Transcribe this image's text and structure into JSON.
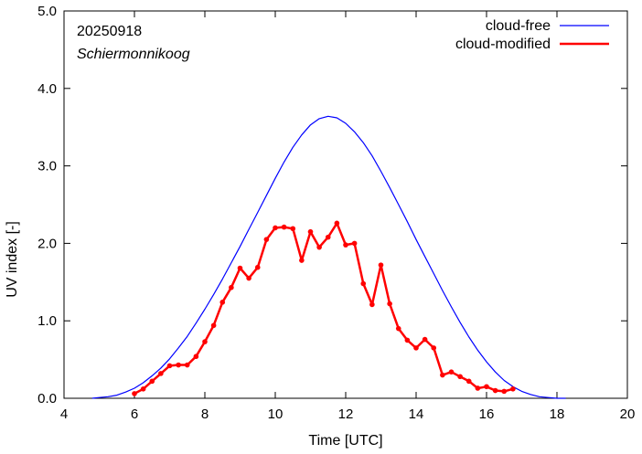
{
  "chart_data": {
    "type": "line",
    "xlabel": "Time  [UTC]",
    "ylabel": "UV index  [-]",
    "xlim": [
      4,
      20
    ],
    "ylim": [
      0,
      5
    ],
    "x_ticks": [
      4,
      6,
      8,
      10,
      12,
      14,
      16,
      18,
      20
    ],
    "y_ticks": [
      0,
      1,
      2,
      3,
      4,
      5
    ],
    "x_tick_labels": [
      "4",
      "6",
      "8",
      "10",
      "12",
      "14",
      "16",
      "18",
      "20"
    ],
    "y_tick_labels": [
      "0.0",
      "1.0",
      "2.0",
      "3.0",
      "4.0",
      "5.0"
    ],
    "grid": false,
    "legend_position": "top-right",
    "annotations": [
      "20250918",
      "Schiermonnikoog"
    ],
    "series": [
      {
        "name": "cloud-free",
        "color": "#0000ff",
        "markers": false,
        "x": [
          4.8,
          5.0,
          5.25,
          5.5,
          5.75,
          6.0,
          6.25,
          6.5,
          6.75,
          7.0,
          7.25,
          7.5,
          7.75,
          8.0,
          8.25,
          8.5,
          8.75,
          9.0,
          9.25,
          9.5,
          9.75,
          10.0,
          10.25,
          10.5,
          10.75,
          11.0,
          11.25,
          11.5,
          11.75,
          12.0,
          12.25,
          12.5,
          12.75,
          13.0,
          13.25,
          13.5,
          13.75,
          14.0,
          14.25,
          14.5,
          14.75,
          15.0,
          15.25,
          15.5,
          15.75,
          16.0,
          16.25,
          16.5,
          16.75,
          17.0,
          17.25,
          17.5,
          17.75,
          18.0,
          18.25
        ],
        "values": [
          0.0,
          0.01,
          0.02,
          0.04,
          0.08,
          0.13,
          0.2,
          0.29,
          0.39,
          0.51,
          0.65,
          0.8,
          0.97,
          1.15,
          1.34,
          1.54,
          1.75,
          1.96,
          2.18,
          2.4,
          2.62,
          2.84,
          3.05,
          3.24,
          3.4,
          3.53,
          3.61,
          3.64,
          3.62,
          3.55,
          3.44,
          3.3,
          3.13,
          2.93,
          2.72,
          2.5,
          2.28,
          2.05,
          1.83,
          1.61,
          1.39,
          1.18,
          0.98,
          0.79,
          0.62,
          0.47,
          0.34,
          0.23,
          0.15,
          0.09,
          0.05,
          0.02,
          0.01,
          0.0,
          0.0
        ]
      },
      {
        "name": "cloud-modified",
        "color": "#ff0000",
        "markers": true,
        "x": [
          6.0,
          6.25,
          6.5,
          6.75,
          7.0,
          7.25,
          7.5,
          7.75,
          8.0,
          8.25,
          8.5,
          8.75,
          9.0,
          9.25,
          9.5,
          9.75,
          10.0,
          10.25,
          10.5,
          10.75,
          11.0,
          11.25,
          11.5,
          11.75,
          12.0,
          12.25,
          12.5,
          12.75,
          13.0,
          13.25,
          13.5,
          13.75,
          14.0,
          14.25,
          14.5,
          14.75,
          15.0,
          15.25,
          15.5,
          15.75,
          16.0,
          16.25,
          16.5,
          16.75
        ],
        "values": [
          0.06,
          0.12,
          0.22,
          0.32,
          0.42,
          0.43,
          0.43,
          0.54,
          0.73,
          0.94,
          1.24,
          1.43,
          1.68,
          1.55,
          1.69,
          2.05,
          2.2,
          2.21,
          2.19,
          1.78,
          2.15,
          1.95,
          2.08,
          2.26,
          1.98,
          2.0,
          1.48,
          1.21,
          1.72,
          1.22,
          0.9,
          0.75,
          0.65,
          0.76,
          0.65,
          0.3,
          0.34,
          0.28,
          0.22,
          0.13,
          0.15,
          0.1,
          0.09,
          0.12
        ]
      }
    ]
  }
}
